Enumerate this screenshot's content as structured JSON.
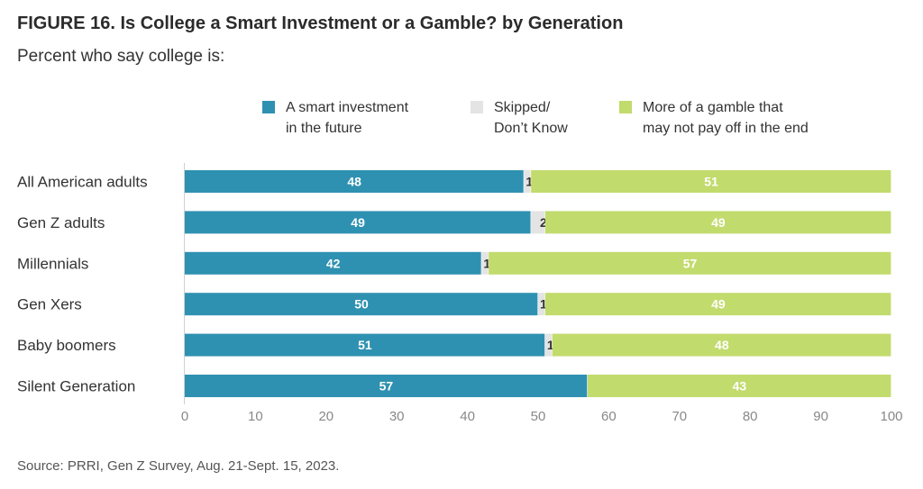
{
  "figure": {
    "title": "FIGURE 16.  Is College a Smart Investment or a Gamble? by Generation",
    "subtitle": "Percent who say college is:",
    "source": "Source: PRRI, Gen Z Survey, Aug. 21-Sept. 15, 2023."
  },
  "legend": [
    {
      "lines": [
        "A smart investment",
        "in the future"
      ],
      "color": "#2f91b1"
    },
    {
      "lines": [
        "Skipped/",
        "Don’t Know"
      ],
      "color": "#e4e4e4"
    },
    {
      "lines": [
        "More of a gamble that",
        "may not pay off in the end"
      ],
      "color": "#c2db6d"
    }
  ],
  "chart_data": {
    "type": "bar",
    "orientation": "horizontal",
    "stacked": true,
    "categories": [
      "All American adults",
      "Gen Z adults",
      "Millennials",
      "Gen Xers",
      "Baby boomers",
      "Silent Generation"
    ],
    "series": [
      {
        "name": "A smart investment in the future",
        "color": "#2f91b1",
        "label_color": "#ffffff",
        "values": [
          48,
          49,
          42,
          50,
          51,
          57
        ]
      },
      {
        "name": "Skipped/ Don’t Know",
        "color": "#e4e4e4",
        "label_color": "#333333",
        "values": [
          1,
          2,
          1,
          1,
          1,
          0
        ]
      },
      {
        "name": "More of a gamble that may not pay off in the end",
        "color": "#c2db6d",
        "label_color": "#ffffff",
        "values": [
          51,
          49,
          57,
          49,
          48,
          43
        ]
      }
    ],
    "xlim": [
      0,
      100
    ],
    "xticks": [
      0,
      10,
      20,
      30,
      40,
      50,
      60,
      70,
      80,
      90,
      100
    ],
    "grid": false,
    "legend_position": "top"
  }
}
